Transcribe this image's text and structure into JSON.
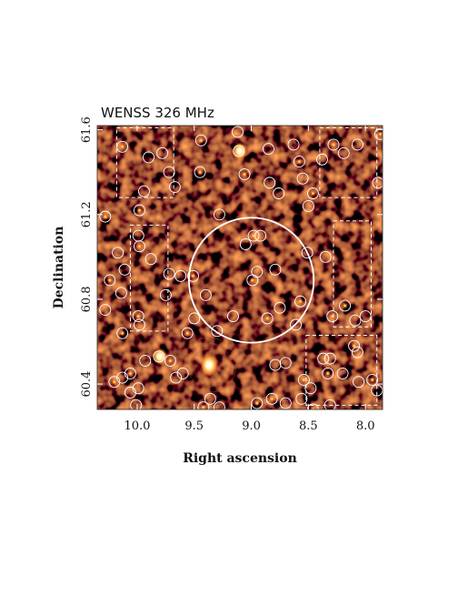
{
  "chart_data": {
    "type": "scatter",
    "title": "WENSS 326 MHz",
    "xlabel": "Right ascension",
    "ylabel": "Declination",
    "xlim": [
      10.35,
      7.85
    ],
    "ylim": [
      60.28,
      61.62
    ],
    "x_reversed": true,
    "x_ticks": [
      {
        "value": 10.0,
        "label": "10.0"
      },
      {
        "value": 9.5,
        "label": "9.5"
      },
      {
        "value": 9.0,
        "label": "9.0"
      },
      {
        "value": 8.5,
        "label": "8.5"
      },
      {
        "value": 8.0,
        "label": "8.0"
      }
    ],
    "y_ticks": [
      {
        "value": 60.4,
        "label": "60.4"
      },
      {
        "value": 60.8,
        "label": "60.8"
      },
      {
        "value": 61.2,
        "label": "61.2"
      },
      {
        "value": 61.6,
        "label": "61.6"
      }
    ],
    "background": "radio continuum intensity map",
    "colors": {
      "map_dark": "#3a0600",
      "map_mid": "#8a2a08",
      "source_core": "#fff2a0",
      "markers": "#ffffff"
    },
    "main_circle": {
      "ra": 9.0,
      "dec": 60.89,
      "radius_deg": 0.295
    },
    "control_regions": [
      {
        "ra_min": 9.68,
        "ra_max": 10.18,
        "dec_min": 61.28,
        "dec_max": 61.61
      },
      {
        "ra_min": 7.9,
        "ra_max": 8.4,
        "dec_min": 61.28,
        "dec_max": 61.61
      },
      {
        "ra_min": 9.73,
        "ra_max": 10.06,
        "dec_min": 60.65,
        "dec_max": 61.15
      },
      {
        "ra_min": 7.95,
        "ra_max": 8.28,
        "dec_min": 60.67,
        "dec_max": 61.17
      },
      {
        "ra_min": 7.9,
        "ra_max": 8.52,
        "dec_min": 60.3,
        "dec_max": 60.63
      }
    ],
    "sources": [
      {
        "ra": 10.13,
        "dec": 61.52
      },
      {
        "ra": 9.9,
        "dec": 61.47
      },
      {
        "ra": 9.78,
        "dec": 61.49
      },
      {
        "ra": 9.44,
        "dec": 61.55
      },
      {
        "ra": 9.12,
        "dec": 61.59
      },
      {
        "ra": 9.11,
        "dec": 61.5
      },
      {
        "ra": 9.06,
        "dec": 61.39
      },
      {
        "ra": 8.85,
        "dec": 61.51
      },
      {
        "ra": 8.63,
        "dec": 61.53
      },
      {
        "ra": 8.58,
        "dec": 61.45
      },
      {
        "ra": 8.55,
        "dec": 61.37
      },
      {
        "ra": 8.38,
        "dec": 61.46
      },
      {
        "ra": 8.28,
        "dec": 61.53
      },
      {
        "ra": 8.19,
        "dec": 61.49
      },
      {
        "ra": 8.07,
        "dec": 61.53
      },
      {
        "ra": 7.87,
        "dec": 61.58
      },
      {
        "ra": 7.89,
        "dec": 61.35
      },
      {
        "ra": 9.94,
        "dec": 61.31
      },
      {
        "ra": 9.98,
        "dec": 61.22
      },
      {
        "ra": 9.67,
        "dec": 61.33
      },
      {
        "ra": 9.72,
        "dec": 61.4
      },
      {
        "ra": 9.45,
        "dec": 61.4
      },
      {
        "ra": 8.84,
        "dec": 61.35
      },
      {
        "ra": 8.76,
        "dec": 61.3
      },
      {
        "ra": 8.46,
        "dec": 61.3
      },
      {
        "ra": 8.5,
        "dec": 61.24
      },
      {
        "ra": 9.28,
        "dec": 61.2
      },
      {
        "ra": 10.28,
        "dec": 61.19
      },
      {
        "ra": 9.99,
        "dec": 61.1
      },
      {
        "ra": 10.17,
        "dec": 61.02
      },
      {
        "ra": 9.98,
        "dec": 61.05
      },
      {
        "ra": 9.88,
        "dec": 60.99
      },
      {
        "ra": 10.11,
        "dec": 60.94
      },
      {
        "ra": 10.24,
        "dec": 60.89
      },
      {
        "ra": 10.14,
        "dec": 60.83
      },
      {
        "ra": 9.75,
        "dec": 60.82
      },
      {
        "ra": 9.99,
        "dec": 60.72
      },
      {
        "ra": 10.28,
        "dec": 60.75
      },
      {
        "ra": 9.98,
        "dec": 60.68
      },
      {
        "ra": 10.13,
        "dec": 60.64
      },
      {
        "ra": 9.72,
        "dec": 60.92
      },
      {
        "ra": 9.62,
        "dec": 60.91
      },
      {
        "ra": 9.51,
        "dec": 60.91
      },
      {
        "ra": 9.4,
        "dec": 60.82
      },
      {
        "ra": 9.05,
        "dec": 61.06
      },
      {
        "ra": 8.98,
        "dec": 61.1
      },
      {
        "ra": 8.92,
        "dec": 61.1
      },
      {
        "ra": 8.95,
        "dec": 60.93
      },
      {
        "ra": 8.99,
        "dec": 60.89
      },
      {
        "ra": 8.79,
        "dec": 60.94
      },
      {
        "ra": 8.75,
        "dec": 60.76
      },
      {
        "ra": 8.86,
        "dec": 60.71
      },
      {
        "ra": 9.16,
        "dec": 60.72
      },
      {
        "ra": 9.5,
        "dec": 60.71
      },
      {
        "ra": 9.56,
        "dec": 60.64
      },
      {
        "ra": 9.3,
        "dec": 60.65
      },
      {
        "ra": 8.61,
        "dec": 60.68
      },
      {
        "ra": 8.57,
        "dec": 60.79
      },
      {
        "ra": 8.51,
        "dec": 61.02
      },
      {
        "ra": 8.35,
        "dec": 61.0
      },
      {
        "ra": 8.18,
        "dec": 60.77
      },
      {
        "ra": 8.09,
        "dec": 60.7
      },
      {
        "ra": 8.0,
        "dec": 60.72
      },
      {
        "ra": 8.29,
        "dec": 60.72
      },
      {
        "ra": 8.37,
        "dec": 60.52
      },
      {
        "ra": 8.31,
        "dec": 60.52
      },
      {
        "ra": 8.1,
        "dec": 60.58
      },
      {
        "ra": 8.2,
        "dec": 60.45
      },
      {
        "ra": 8.07,
        "dec": 60.55
      },
      {
        "ra": 8.33,
        "dec": 60.45
      },
      {
        "ra": 8.48,
        "dec": 60.38
      },
      {
        "ra": 8.56,
        "dec": 60.33
      },
      {
        "ra": 8.54,
        "dec": 60.42
      },
      {
        "ra": 8.79,
        "dec": 60.49
      },
      {
        "ra": 8.7,
        "dec": 60.5
      },
      {
        "ra": 8.46,
        "dec": 60.28
      },
      {
        "ra": 8.31,
        "dec": 60.3
      },
      {
        "ra": 8.7,
        "dec": 60.31
      },
      {
        "ra": 8.82,
        "dec": 60.33
      },
      {
        "ra": 8.06,
        "dec": 60.41
      },
      {
        "ra": 7.9,
        "dec": 60.37
      },
      {
        "ra": 7.94,
        "dec": 60.42
      },
      {
        "ra": 9.81,
        "dec": 60.53
      },
      {
        "ra": 9.93,
        "dec": 60.51
      },
      {
        "ra": 10.06,
        "dec": 60.45
      },
      {
        "ra": 9.99,
        "dec": 60.38
      },
      {
        "ra": 10.13,
        "dec": 60.43
      },
      {
        "ra": 10.2,
        "dec": 60.41
      },
      {
        "ra": 10.06,
        "dec": 60.36
      },
      {
        "ra": 10.01,
        "dec": 60.3
      },
      {
        "ra": 9.71,
        "dec": 60.51
      },
      {
        "ra": 9.66,
        "dec": 60.43
      },
      {
        "ra": 9.6,
        "dec": 60.45
      },
      {
        "ra": 9.42,
        "dec": 60.29
      },
      {
        "ra": 9.36,
        "dec": 60.33
      },
      {
        "ra": 9.28,
        "dec": 60.29
      },
      {
        "ra": 8.95,
        "dec": 60.31
      }
    ],
    "bright_sources": [
      {
        "ra": 9.37,
        "dec": 60.49,
        "strength": 1.0
      },
      {
        "ra": 9.1,
        "dec": 61.5,
        "strength": 0.7
      },
      {
        "ra": 9.8,
        "dec": 60.53,
        "strength": 0.65
      }
    ]
  }
}
